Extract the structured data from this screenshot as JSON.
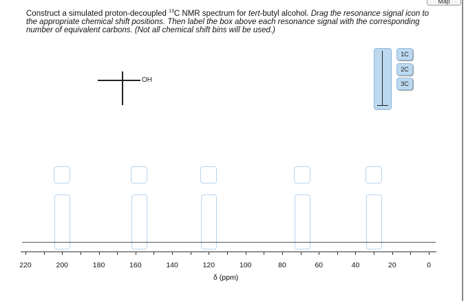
{
  "instructions": {
    "part1": "Construct a simulated proton-decoupled ",
    "sup": "13",
    "part2": "C NMR spectrum for ",
    "italic1": "tert",
    "part3": "-butyl alcohol. ",
    "part4": "Drag the resonance signal icon to the appropriate chemical shift positions. Then label the box above each resonance signal with the corresponding number of equivalent carbons. (Not all chemical shift bins will be used.)"
  },
  "map_button": "Map",
  "molecule": {
    "oh_label": "OH"
  },
  "labels": [
    "1C",
    "2C",
    "3C"
  ],
  "axis": {
    "ticks": [
      "220",
      "200",
      "180",
      "160",
      "140",
      "120",
      "100",
      "80",
      "60",
      "40",
      "20",
      "0"
    ],
    "xlabel": "δ (ppm)",
    "min": 0,
    "max": 220
  },
  "bins_ppm": [
    200,
    158,
    120,
    69,
    30
  ]
}
